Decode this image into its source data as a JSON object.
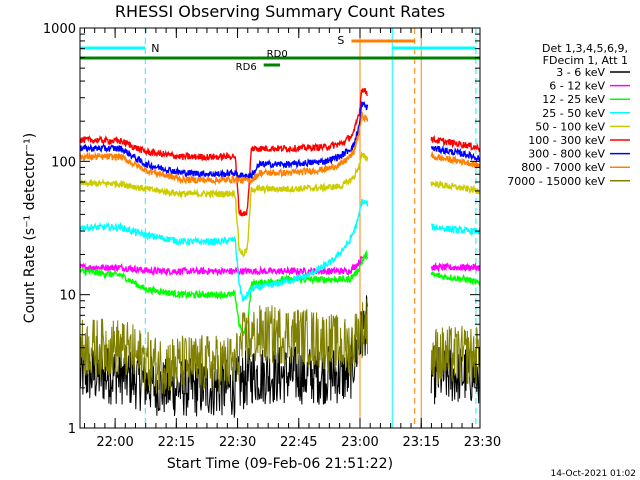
{
  "chart_data": {
    "type": "line",
    "title": "RHESSI Observing Summary Count Rates",
    "xlabel": "Start Time (09-Feb-06 21:51:22)",
    "ylabel": "Count Rate (s⁻¹ detector⁻¹)",
    "y_scale": "log",
    "ylim": [
      1,
      1000
    ],
    "xlim_minutes": [
      0,
      98
    ],
    "x_ticks": [
      {
        "label": "22:00",
        "minutes": 8.6
      },
      {
        "label": "22:15",
        "minutes": 23.6
      },
      {
        "label": "22:30",
        "minutes": 38.6
      },
      {
        "label": "22:45",
        "minutes": 53.6
      },
      {
        "label": "23:00",
        "minutes": 68.6
      },
      {
        "label": "23:15",
        "minutes": 83.6
      },
      {
        "label": "23:30",
        "minutes": 98.6
      }
    ],
    "y_ticks": [
      {
        "label": "1",
        "value": 1
      },
      {
        "label": "10",
        "value": 10
      },
      {
        "label": "100",
        "value": 100
      },
      {
        "label": "1000",
        "value": 1000
      }
    ],
    "legend_header": [
      "Det 1,3,4,5,6,9,",
      "FDecim 1, Att 1"
    ],
    "legend_position": "right",
    "series": [
      {
        "name": "3 - 6 keV",
        "color": "#000000",
        "points": [
          [
            0,
            2.5
          ],
          [
            10,
            2.5
          ],
          [
            20,
            2.0
          ],
          [
            30,
            2.0
          ],
          [
            38,
            2.0
          ],
          [
            42,
            2.5
          ],
          [
            52,
            2.5
          ],
          [
            62,
            2.5
          ],
          [
            66,
            2.5
          ],
          [
            68,
            4
          ],
          [
            70,
            6
          ],
          [
            86.5,
            2.5
          ],
          [
            95,
            2.5
          ],
          [
            98,
            2.5
          ]
        ]
      },
      {
        "name": "6 - 12 keV",
        "color": "#ff00ff",
        "points": [
          [
            0,
            16
          ],
          [
            10,
            16
          ],
          [
            18,
            15
          ],
          [
            30,
            15
          ],
          [
            38,
            15
          ],
          [
            39,
            15
          ],
          [
            42,
            15
          ],
          [
            50,
            15
          ],
          [
            60,
            15
          ],
          [
            66,
            15
          ],
          [
            68,
            17
          ],
          [
            70,
            20
          ],
          [
            86.5,
            16
          ],
          [
            95,
            16
          ],
          [
            98,
            16
          ]
        ]
      },
      {
        "name": "12 - 25 keV",
        "color": "#00ff00",
        "points": [
          [
            0,
            15
          ],
          [
            10,
            14
          ],
          [
            16,
            11
          ],
          [
            25,
            10
          ],
          [
            35,
            10
          ],
          [
            38,
            10
          ],
          [
            39,
            6
          ],
          [
            40,
            5
          ],
          [
            41,
            6
          ],
          [
            42,
            12
          ],
          [
            50,
            13
          ],
          [
            60,
            13
          ],
          [
            66,
            13
          ],
          [
            68,
            15
          ],
          [
            70,
            20
          ],
          [
            86.5,
            14
          ],
          [
            95,
            13
          ],
          [
            98,
            12
          ]
        ]
      },
      {
        "name": "25 - 50 keV",
        "color": "#00ffff",
        "points": [
          [
            0,
            32
          ],
          [
            10,
            32
          ],
          [
            16,
            28
          ],
          [
            25,
            25
          ],
          [
            35,
            25
          ],
          [
            38,
            26
          ],
          [
            39,
            12
          ],
          [
            40,
            9
          ],
          [
            41,
            10
          ],
          [
            42,
            11
          ],
          [
            48,
            12
          ],
          [
            56,
            14
          ],
          [
            62,
            18
          ],
          [
            66,
            25
          ],
          [
            68,
            35
          ],
          [
            69,
            50
          ],
          [
            86.5,
            32
          ],
          [
            95,
            30
          ],
          [
            98,
            30
          ]
        ]
      },
      {
        "name": "50 - 100 keV",
        "color": "#cccc00",
        "points": [
          [
            0,
            68
          ],
          [
            10,
            68
          ],
          [
            16,
            62
          ],
          [
            25,
            57
          ],
          [
            35,
            57
          ],
          [
            38,
            58
          ],
          [
            39,
            22
          ],
          [
            40,
            20
          ],
          [
            41,
            22
          ],
          [
            42,
            62
          ],
          [
            50,
            62
          ],
          [
            58,
            63
          ],
          [
            64,
            65
          ],
          [
            67,
            75
          ],
          [
            68.5,
            95
          ],
          [
            69,
            110
          ],
          [
            86.5,
            68
          ],
          [
            95,
            62
          ],
          [
            98,
            60
          ]
        ]
      },
      {
        "name": "100 - 300 keV",
        "color": "#ff0000",
        "points": [
          [
            0,
            145
          ],
          [
            10,
            142
          ],
          [
            16,
            118
          ],
          [
            25,
            108
          ],
          [
            35,
            108
          ],
          [
            38,
            110
          ],
          [
            39,
            42
          ],
          [
            40,
            40
          ],
          [
            41,
            42
          ],
          [
            42,
            125
          ],
          [
            52,
            125
          ],
          [
            60,
            128
          ],
          [
            64,
            135
          ],
          [
            67,
            160
          ],
          [
            68.5,
            240
          ],
          [
            69,
            350
          ],
          [
            86.5,
            145
          ],
          [
            95,
            132
          ],
          [
            98,
            125
          ]
        ]
      },
      {
        "name": "300 - 800 keV",
        "color": "#0000ff",
        "points": [
          [
            0,
            125
          ],
          [
            10,
            125
          ],
          [
            16,
            95
          ],
          [
            25,
            82
          ],
          [
            35,
            80
          ],
          [
            38,
            82
          ],
          [
            39,
            78
          ],
          [
            42,
            78
          ],
          [
            44,
            95
          ],
          [
            52,
            95
          ],
          [
            60,
            100
          ],
          [
            64,
            110
          ],
          [
            67,
            130
          ],
          [
            68.5,
            190
          ],
          [
            69,
            270
          ],
          [
            86.5,
            125
          ],
          [
            95,
            112
          ],
          [
            98,
            105
          ]
        ]
      },
      {
        "name": "800 - 7000 keV",
        "color": "#ff8000",
        "points": [
          [
            0,
            108
          ],
          [
            10,
            108
          ],
          [
            16,
            86
          ],
          [
            25,
            73
          ],
          [
            35,
            72
          ],
          [
            38,
            74
          ],
          [
            39,
            72
          ],
          [
            42,
            72
          ],
          [
            44,
            82
          ],
          [
            52,
            82
          ],
          [
            60,
            87
          ],
          [
            64,
            95
          ],
          [
            67,
            115
          ],
          [
            68.5,
            170
          ],
          [
            69,
            220
          ],
          [
            86.5,
            108
          ],
          [
            95,
            98
          ],
          [
            98,
            92
          ]
        ]
      },
      {
        "name": "7000 - 15000 keV",
        "color": "#808000",
        "points": [
          [
            0,
            4
          ],
          [
            10,
            4
          ],
          [
            18,
            3
          ],
          [
            30,
            3
          ],
          [
            38,
            3
          ],
          [
            40,
            4.5
          ],
          [
            44,
            5
          ],
          [
            52,
            5
          ],
          [
            60,
            4.5
          ],
          [
            66,
            4
          ],
          [
            68,
            5
          ],
          [
            70,
            6
          ],
          [
            86.5,
            3.5
          ],
          [
            95,
            3.5
          ],
          [
            98,
            3.5
          ]
        ]
      }
    ],
    "annotations": {
      "night_intervals": [
        {
          "start": 0,
          "end": 16,
          "label": "N"
        },
        {
          "start": 76.5,
          "end": 97,
          "label": ""
        }
      ],
      "saa_interval": {
        "start": 66.5,
        "end": 82,
        "label": "S"
      },
      "decimation_bars": [
        {
          "label": "RD6",
          "start": 45,
          "end": 49
        },
        {
          "label": "RD0",
          "start": 0,
          "end": 98
        }
      ],
      "vertical_lines": [
        {
          "minutes": 0,
          "color": "#00ffff",
          "style": "solid"
        },
        {
          "minutes": 16,
          "color": "#00ffff",
          "style": "dashed"
        },
        {
          "minutes": 68.6,
          "color": "#ff8000",
          "style": "solid"
        },
        {
          "minutes": 76.5,
          "color": "#00ffff",
          "style": "solid"
        },
        {
          "minutes": 82,
          "color": "#ff8000",
          "style": "dashed"
        },
        {
          "minutes": 83.6,
          "color": "#ff8000",
          "style": "solid"
        },
        {
          "minutes": 97,
          "color": "#00ffff",
          "style": "dashed"
        }
      ]
    }
  },
  "footer": {
    "timestamp": "14-Oct-2021 01:02"
  },
  "colors": {
    "background": "#ffffff",
    "axis": "#000000"
  }
}
